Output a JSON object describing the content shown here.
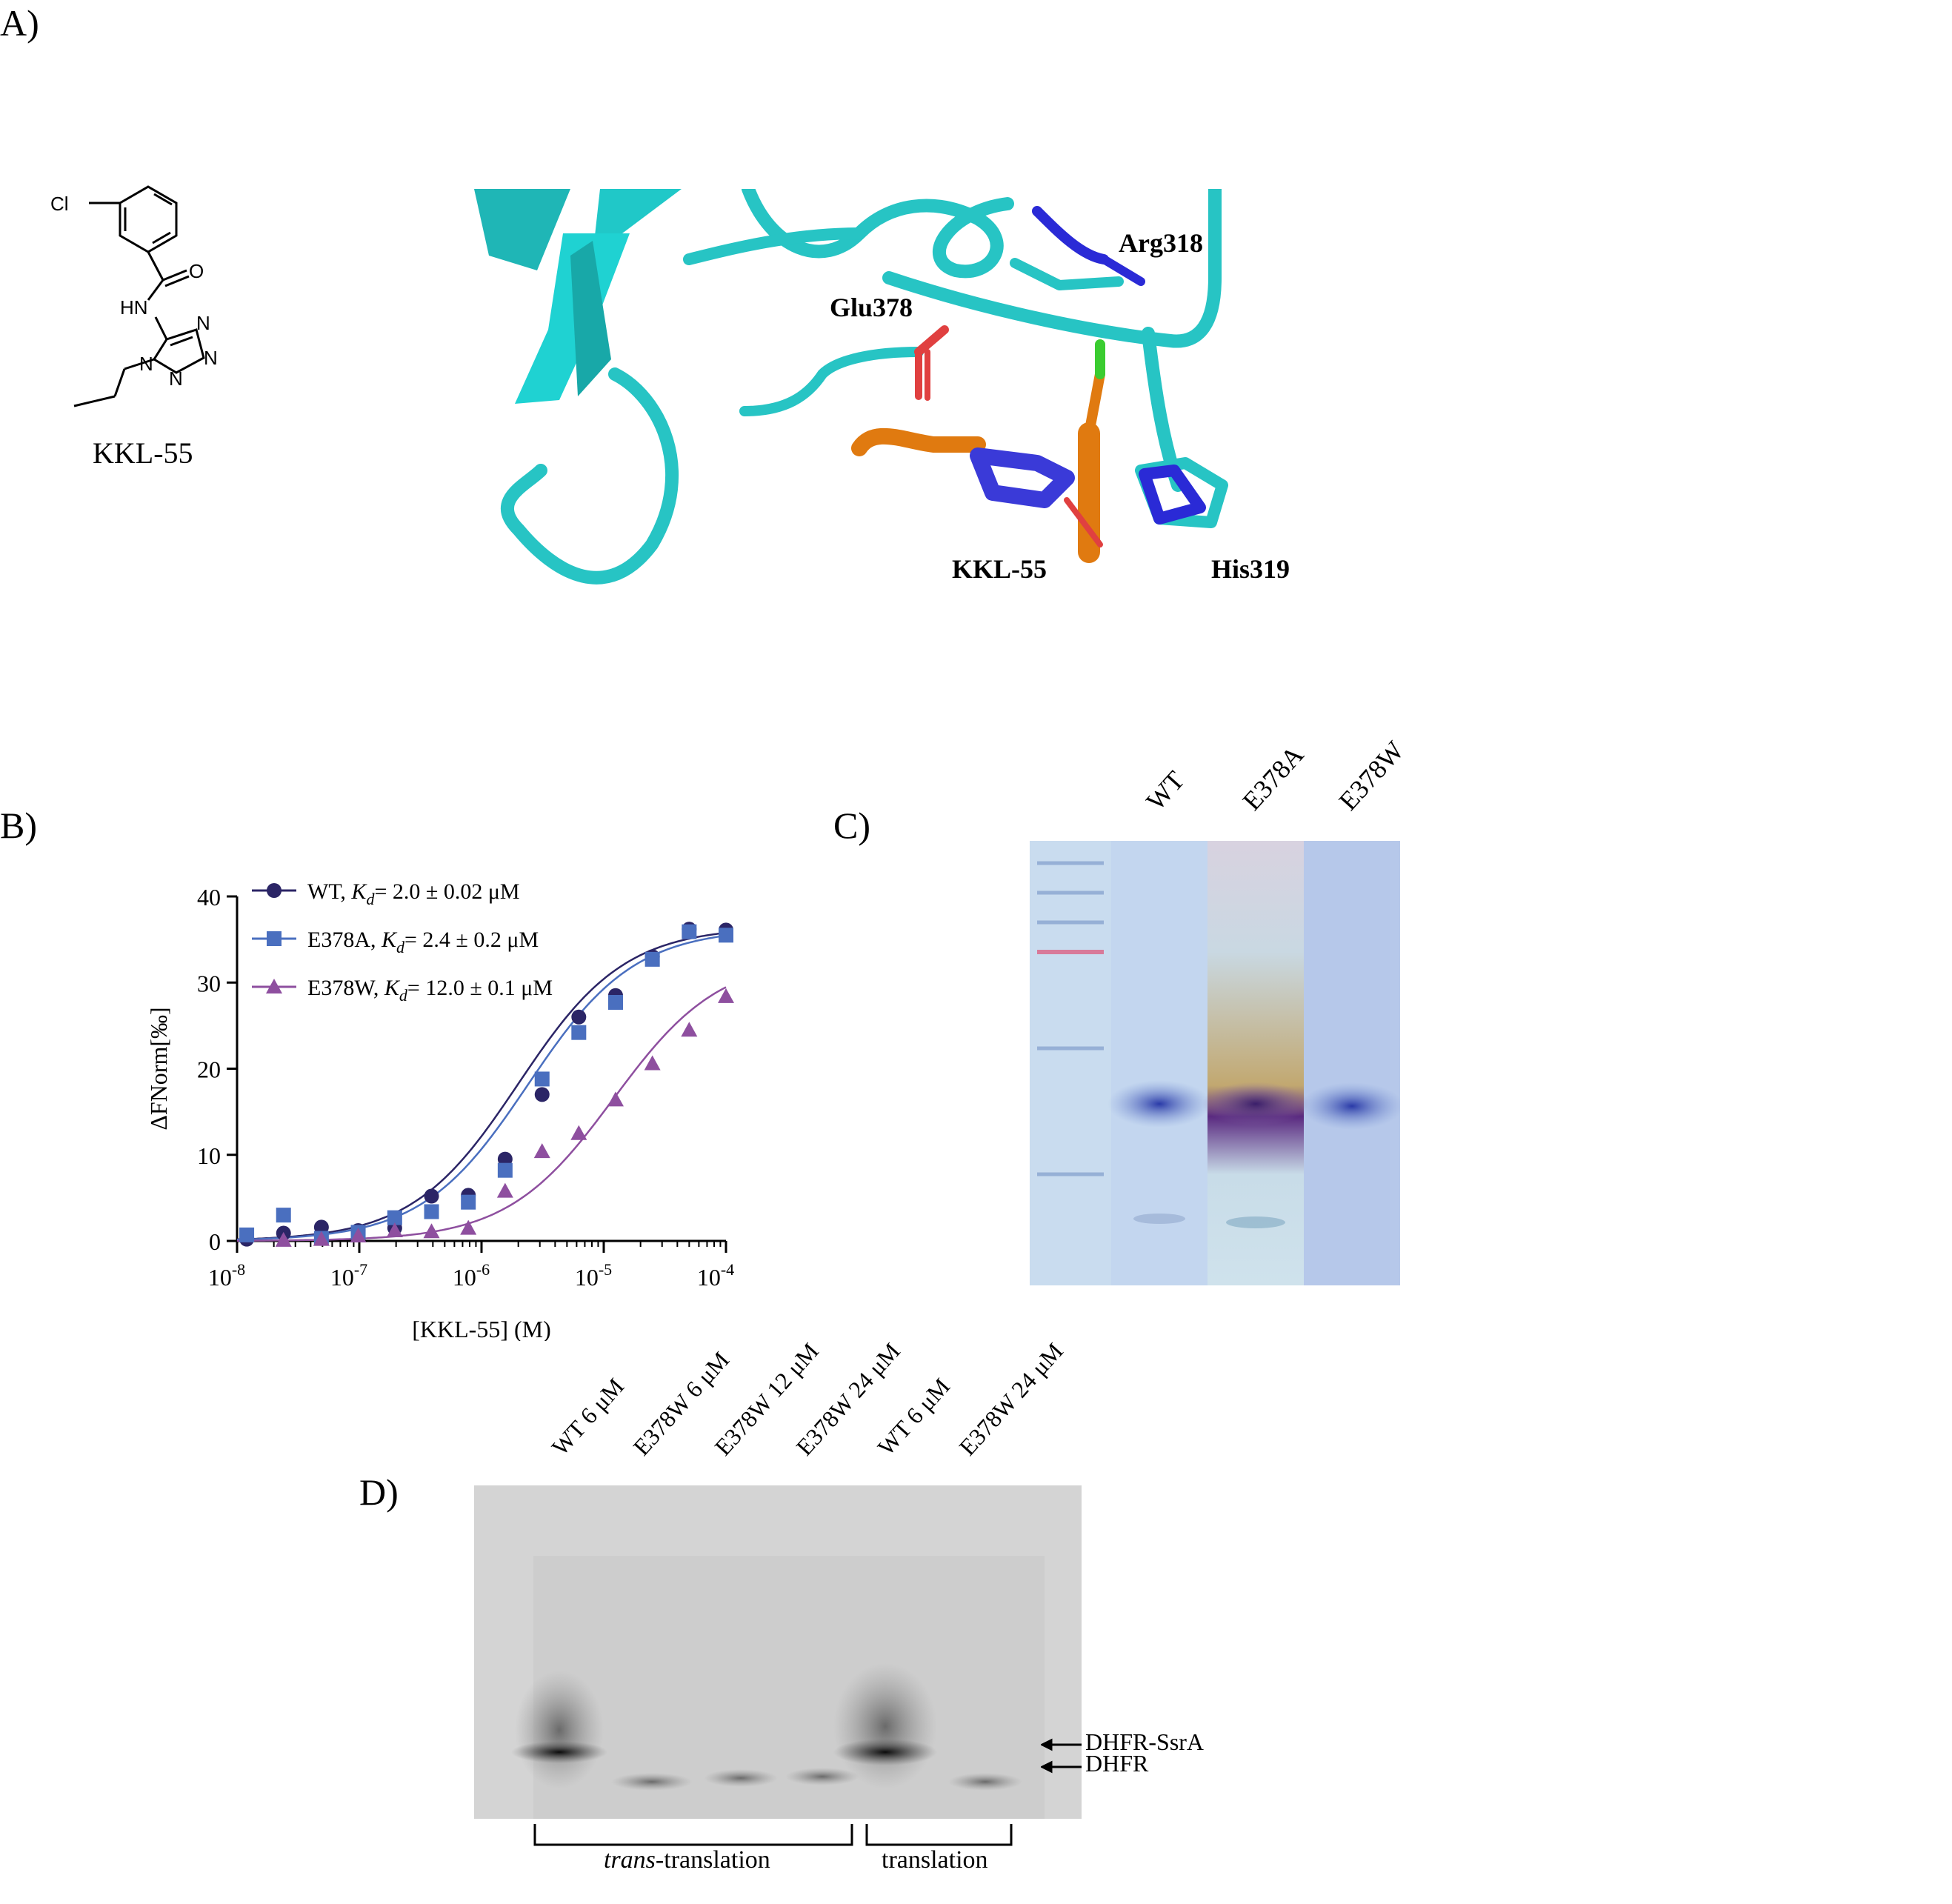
{
  "panels": {
    "a": {
      "label": "A)",
      "compound_name": "KKL-55",
      "structure_atoms": [
        "Cl",
        "O",
        "HN",
        "N",
        "N",
        "N",
        "N"
      ],
      "residues": [
        "Arg318",
        "Glu378",
        "KKL-55",
        "His319"
      ]
    },
    "b": {
      "label": "B)",
      "legend": [
        {
          "name": "WT",
          "kd": "= 2.0 ± 0.02 μM"
        },
        {
          "name": "E378A",
          "kd": "= 2.4 ± 0.2 μM"
        },
        {
          "name": "E378W",
          "kd": "= 12.0 ± 0.1 μM"
        }
      ],
      "kd_symbol": "K",
      "kd_sub": "d"
    },
    "c": {
      "label": "C)",
      "lanes": [
        "WT",
        "E378A",
        "E378W"
      ]
    },
    "d": {
      "label": "D)",
      "lanes": [
        "WT 6 μM",
        "E378W 6 μM",
        "E378W 12 μM",
        "E378W 24 μM",
        "WT 6 μM",
        "E378W 24 μM"
      ],
      "bands": [
        "DHFR-SsrA",
        "DHFR"
      ],
      "groups": {
        "trans_italic": "trans",
        "trans_rest": "-translation",
        "translation": "translation"
      }
    }
  },
  "chart_data": {
    "type": "scatter",
    "xlabel": "[KKL-55] (M)",
    "ylabel": "ΔFNorm[‰]",
    "x_scale": "log",
    "xlim": [
      1e-08,
      0.0001
    ],
    "ylim": [
      0,
      40
    ],
    "yticks": [
      "0",
      "10",
      "20",
      "30",
      "40"
    ],
    "xticks": [
      {
        "base": "10",
        "exp": "-8",
        "value": 1e-08
      },
      {
        "base": "10",
        "exp": "-7",
        "value": 1e-07
      },
      {
        "base": "10",
        "exp": "-6",
        "value": 1e-06
      },
      {
        "base": "10",
        "exp": "-5",
        "value": 1e-05
      },
      {
        "base": "10",
        "exp": "-4",
        "value": 0.0001
      }
    ],
    "series": [
      {
        "name": "WT",
        "color": "#2b2566",
        "marker": "circle",
        "kd": 2e-06,
        "max": 36.5,
        "x": [
          1.2e-08,
          2.4e-08,
          4.9e-08,
          9.8e-08,
          1.95e-07,
          3.9e-07,
          7.8e-07,
          1.56e-06,
          3.13e-06,
          6.25e-06,
          1.25e-05,
          2.5e-05,
          5e-05,
          0.0001
        ],
        "y": [
          0.2,
          0.9,
          1.6,
          1.2,
          1.5,
          5.2,
          5.3,
          9.5,
          17.0,
          26.0,
          28.5,
          33.0,
          36.2,
          36.1
        ]
      },
      {
        "name": "E378A",
        "color": "#4a6fbf",
        "marker": "square",
        "kd": 2.4e-06,
        "max": 36.3,
        "x": [
          1.2e-08,
          2.4e-08,
          4.9e-08,
          9.8e-08,
          1.95e-07,
          3.9e-07,
          7.8e-07,
          1.56e-06,
          3.13e-06,
          6.25e-06,
          1.25e-05,
          2.5e-05,
          5e-05,
          0.0001
        ],
        "y": [
          0.7,
          3.0,
          0.3,
          1.0,
          2.7,
          3.4,
          4.5,
          8.2,
          18.8,
          24.2,
          27.7,
          32.7,
          35.9,
          35.5
        ]
      },
      {
        "name": "E378W",
        "color": "#8e4f9f",
        "marker": "triangle",
        "kd": 1.2e-05,
        "max": 33.0,
        "x": [
          2.4e-08,
          4.9e-08,
          9.8e-08,
          1.95e-07,
          3.9e-07,
          7.8e-07,
          1.56e-06,
          3.13e-06,
          6.25e-06,
          1.25e-05,
          2.5e-05,
          5e-05,
          0.0001
        ],
        "y": [
          0.1,
          0.2,
          0.6,
          1.2,
          1.1,
          1.5,
          5.8,
          10.4,
          12.5,
          16.4,
          20.6,
          24.5,
          28.4
        ]
      }
    ]
  }
}
